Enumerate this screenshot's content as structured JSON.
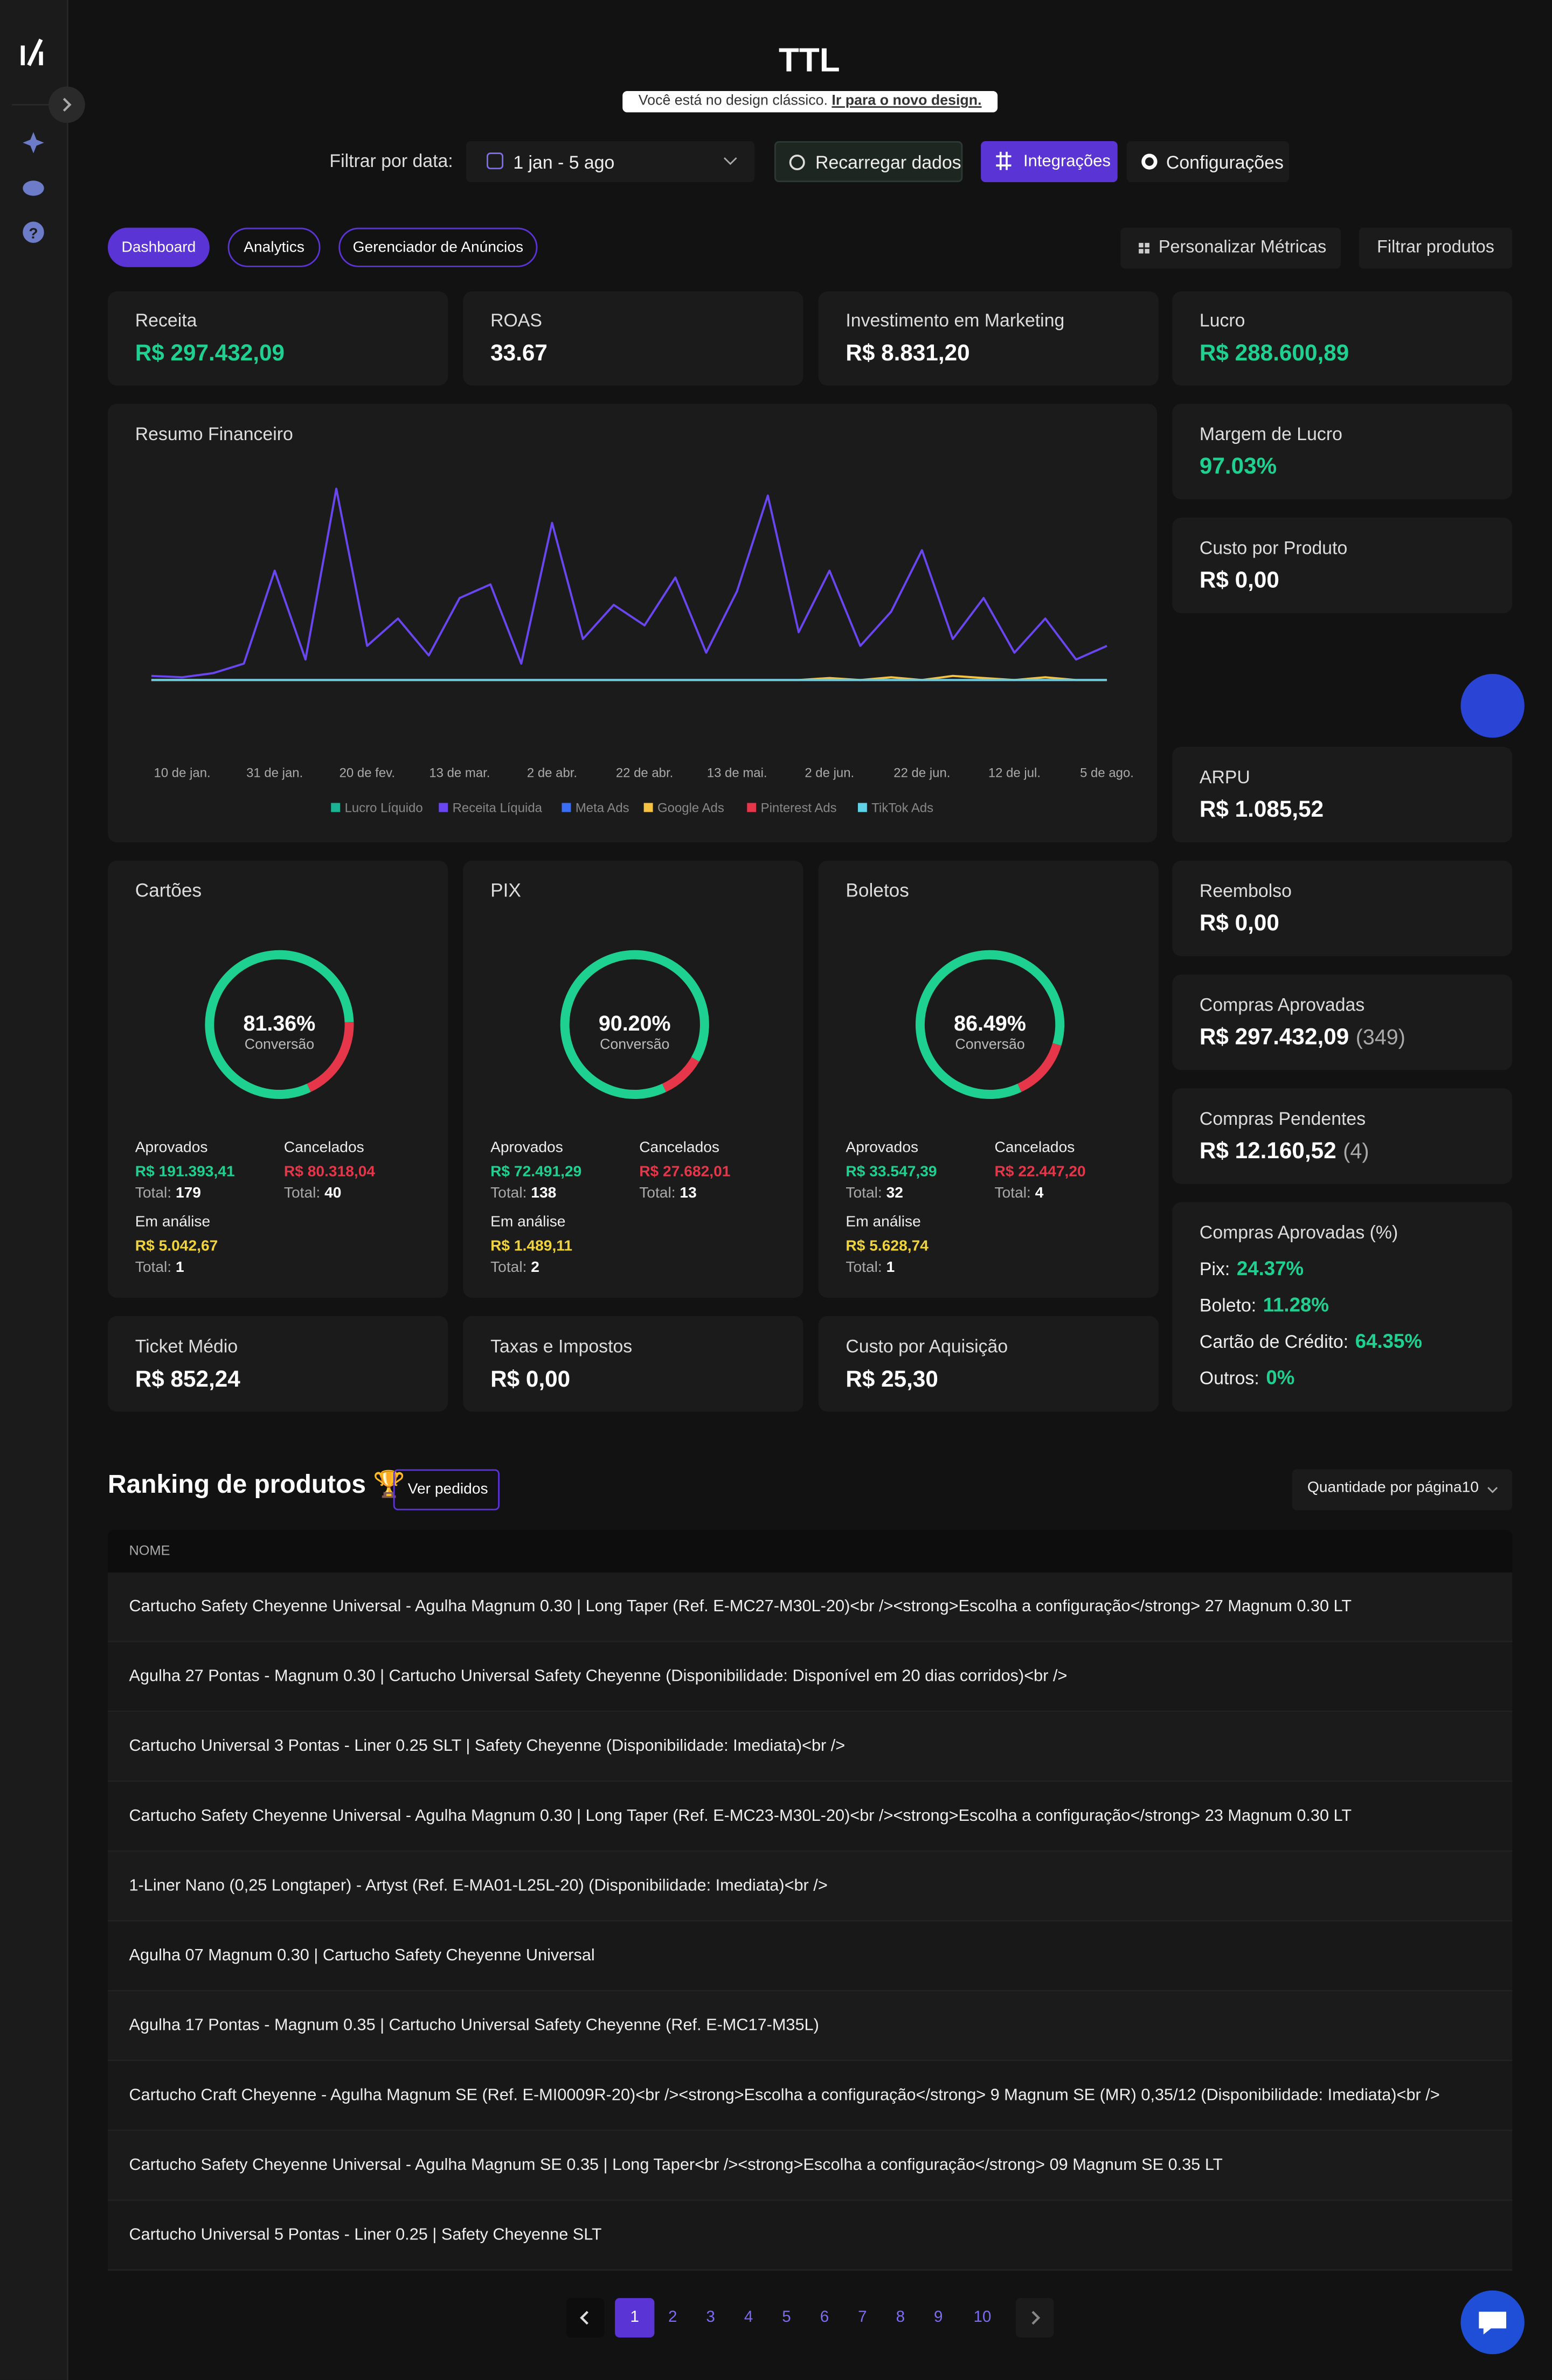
{
  "header": {
    "title": "TTL",
    "notice": "Você está no design clássico.",
    "notice_link": "Ir para o novo design.",
    "filter_label": "Filtrar por data:",
    "date_range": "1 jan - 5 ago",
    "reload": "Recarregar dados",
    "integrations": "Integrações",
    "settings": "Configurações"
  },
  "tabs": [
    "Dashboard",
    "Analytics",
    "Gerenciador de Anúncios"
  ],
  "actions": [
    "Personalizar Métricas",
    "Filtrar produtos"
  ],
  "top_cards": [
    {
      "label": "Receita",
      "value": "R$ 297.432,09",
      "color": "#1ed190"
    },
    {
      "label": "ROAS",
      "value": "33.67"
    },
    {
      "label": "Investimento em Marketing",
      "value": "R$ 8.831,20"
    },
    {
      "label": "Lucro",
      "value": "R$ 288.600,89",
      "color": "#1ed190"
    }
  ],
  "side_cards": [
    {
      "label": "Margem de Lucro",
      "value": "97.03%",
      "color": "#1ed190"
    },
    {
      "label": "Custo por Produto",
      "value": "R$ 0,00"
    },
    {
      "label": "ARPU",
      "value": "R$ 1.085,52"
    },
    {
      "label": "Reembolso",
      "value": "R$ 0,00"
    },
    {
      "label": "Compras Aprovadas",
      "value": "R$ 297.432,09",
      "count": "(349)"
    },
    {
      "label": "Compras Pendentes",
      "value": "R$ 12.160,52",
      "count": "(4)"
    }
  ],
  "approved_share": {
    "label": "Compras Aprovadas (%)",
    "items": [
      {
        "label": "Pix:",
        "value": "24.37%"
      },
      {
        "label": "Boleto:",
        "value": "11.28%"
      },
      {
        "label": "Cartão de Crédito:",
        "value": "64.35%"
      },
      {
        "label": "Outros:",
        "value": "0%"
      }
    ]
  },
  "bottom_cards": [
    {
      "label": "Ticket Médio",
      "value": "R$ 852,24"
    },
    {
      "label": "Taxas e Impostos",
      "value": "R$ 0,00"
    },
    {
      "label": "Custo por Aquisição",
      "value": "R$ 25,30"
    }
  ],
  "chart": {
    "type": "line",
    "title": "Resumo Financeiro",
    "categories": [
      null,
      "10 de jan.",
      null,
      null,
      "31 de jan.",
      null,
      null,
      "20 de fev.",
      null,
      null,
      "13 de mar.",
      null,
      null,
      "2 de abr.",
      null,
      null,
      "22 de abr.",
      null,
      null,
      "13 de mai.",
      null,
      null,
      "2 de jun.",
      null,
      null,
      "22 de jun.",
      null,
      null,
      "12 de jul.",
      null,
      null,
      "5 de ago."
    ],
    "ylim": [
      0,
      15000
    ],
    "series": [
      {
        "name": "Lucro Líquido",
        "color": "#1ab394",
        "values": [
          0,
          0,
          0,
          0,
          0,
          0,
          0,
          0,
          0,
          0,
          0,
          0,
          0,
          0,
          0,
          0,
          0,
          0,
          0,
          0,
          0,
          0,
          0,
          0,
          0,
          0,
          0,
          0,
          0,
          0,
          0,
          0
        ]
      },
      {
        "name": "Receita Líquida",
        "color": "#6a46f0",
        "values": [
          300,
          200,
          500,
          1200,
          8000,
          1500,
          14000,
          2500,
          4500,
          1800,
          6000,
          7000,
          1200,
          11500,
          3000,
          5500,
          4000,
          7500,
          2000,
          6500,
          13500,
          3500,
          8000,
          2500,
          5000,
          9500,
          3000,
          6000,
          2000,
          4500,
          1500,
          2500
        ]
      },
      {
        "name": "Meta Ads",
        "color": "#3b6ef5",
        "values": [
          0,
          0,
          0,
          0,
          0,
          0,
          0,
          0,
          0,
          0,
          0,
          0,
          0,
          0,
          0,
          0,
          0,
          0,
          0,
          0,
          0,
          0,
          0,
          0,
          0,
          0,
          0,
          0,
          0,
          0,
          0,
          0
        ]
      },
      {
        "name": "Google Ads",
        "color": "#f5c242",
        "values": [
          0,
          0,
          0,
          0,
          0,
          0,
          0,
          0,
          0,
          0,
          0,
          0,
          0,
          0,
          0,
          0,
          0,
          0,
          0,
          0,
          0,
          0,
          150,
          0,
          200,
          0,
          300,
          150,
          0,
          200,
          0,
          0
        ]
      },
      {
        "name": "Pinterest Ads",
        "color": "#e5364a",
        "values": [
          0,
          0,
          0,
          0,
          0,
          0,
          0,
          0,
          0,
          0,
          0,
          0,
          0,
          0,
          0,
          0,
          0,
          0,
          0,
          0,
          0,
          0,
          0,
          0,
          0,
          0,
          0,
          0,
          0,
          0,
          0,
          0
        ]
      },
      {
        "name": "TikTok Ads",
        "color": "#5fd3e6",
        "values": [
          0,
          0,
          0,
          0,
          0,
          0,
          0,
          0,
          0,
          0,
          0,
          0,
          0,
          0,
          0,
          0,
          0,
          0,
          0,
          0,
          0,
          0,
          0,
          0,
          0,
          0,
          0,
          0,
          0,
          0,
          0,
          0
        ]
      }
    ]
  },
  "payments": [
    {
      "title": "Cartões",
      "conversion": {
        "value": 81.36,
        "label": "81.36%"
      },
      "conversion_label": "Conversão",
      "approved": {
        "label": "Aprovados",
        "amount": "R$ 191.393,41",
        "total_label": "Total:",
        "total": 179
      },
      "cancelled": {
        "label": "Cancelados",
        "amount": "R$ 80.318,04",
        "total_label": "Total:",
        "total": 40
      },
      "pending": {
        "label": "Em análise",
        "amount": "R$ 5.042,67",
        "total_label": "Total:",
        "total": 1
      }
    },
    {
      "title": "PIX",
      "conversion": {
        "value": 90.2,
        "label": "90.20%"
      },
      "conversion_label": "Conversão",
      "approved": {
        "label": "Aprovados",
        "amount": "R$ 72.491,29",
        "total_label": "Total:",
        "total": 138
      },
      "cancelled": {
        "label": "Cancelados",
        "amount": "R$ 27.682,01",
        "total_label": "Total:",
        "total": 13
      },
      "pending": {
        "label": "Em análise",
        "amount": "R$ 1.489,11",
        "total_label": "Total:",
        "total": 2
      }
    },
    {
      "title": "Boletos",
      "conversion": {
        "value": 86.49,
        "label": "86.49%"
      },
      "conversion_label": "Conversão",
      "approved": {
        "label": "Aprovados",
        "amount": "R$ 33.547,39",
        "total_label": "Total:",
        "total": 32
      },
      "cancelled": {
        "label": "Cancelados",
        "amount": "R$ 22.447,20",
        "total_label": "Total:",
        "total": 4
      },
      "pending": {
        "label": "Em análise",
        "amount": "R$ 5.628,74",
        "total_label": "Total:",
        "total": 1
      }
    }
  ],
  "ranking": {
    "title": "Ranking de produtos 🏆",
    "orders_button": "Ver pedidos",
    "per_page_label": "Quantidade por página",
    "per_page": 10,
    "column": "NOME",
    "rows": [
      "Cartucho Safety Cheyenne Universal - Agulha Magnum 0.30 | Long Taper (Ref. E-MC27-M30L-20)<br /><strong>Escolha a configuração</strong> 27 Magnum 0.30 LT",
      "Agulha 27 Pontas - Magnum 0.30 | Cartucho Universal Safety Cheyenne (Disponibilidade: Disponível em 20 dias corridos)<br />",
      "Cartucho Universal 3 Pontas - Liner 0.25 SLT | Safety Cheyenne (Disponibilidade: Imediata)<br />",
      "Cartucho Safety Cheyenne Universal - Agulha Magnum 0.30 | Long Taper (Ref. E-MC23-M30L-20)<br /><strong>Escolha a configuração</strong> 23 Magnum 0.30 LT",
      "1-Liner Nano (0,25 Longtaper) - Artyst (Ref. E-MA01-L25L-20) (Disponibilidade: Imediata)<br />",
      "Agulha 07 Magnum 0.30 | Cartucho Safety Cheyenne Universal",
      "Agulha 17 Pontas - Magnum 0.35 | Cartucho Universal Safety Cheyenne (Ref. E-MC17-M35L)",
      "Cartucho Craft Cheyenne - Agulha Magnum SE (Ref. E-MI0009R-20)<br /><strong>Escolha a configuração</strong> 9 Magnum SE (MR) 0,35/12 (Disponibilidade: Imediata)<br />",
      "Cartucho Safety Cheyenne Universal - Agulha Magnum SE 0.35 | Long Taper<br /><strong>Escolha a configuração</strong> 09 Magnum SE 0.35 LT",
      "Cartucho Universal 5 Pontas - Liner 0.25 | Safety Cheyenne SLT"
    ],
    "pages": [
      1,
      2,
      3,
      4,
      5,
      6,
      7,
      8,
      9,
      10
    ]
  }
}
